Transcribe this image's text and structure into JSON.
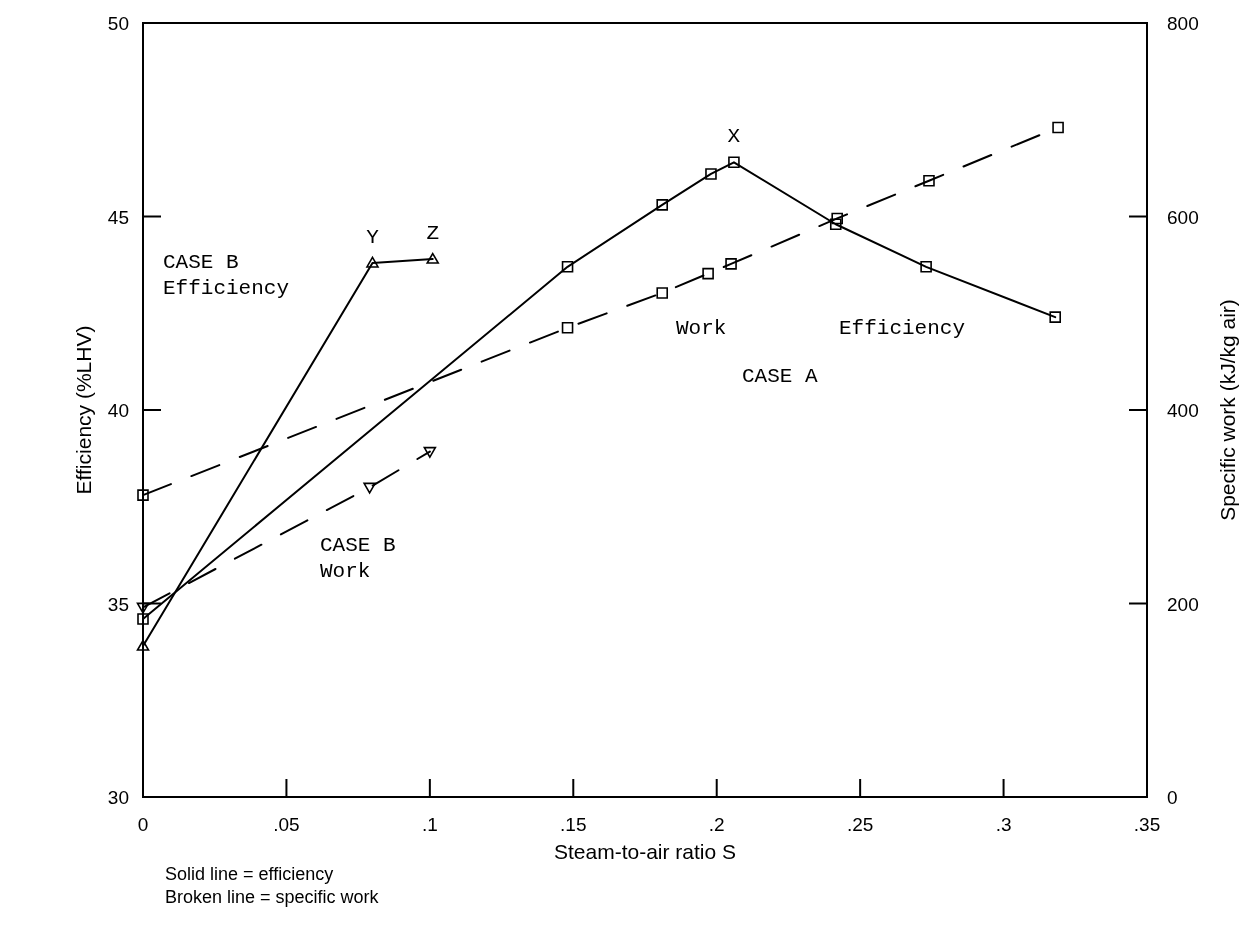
{
  "chart_data": {
    "type": "line",
    "xlabel": "Steam-to-air ratio S",
    "ylabel": "Efficiency (%LHV)",
    "y2label": "Specific work (kJ/kg air)",
    "xlim": [
      0,
      0.35
    ],
    "xticks": [
      0,
      {
        "value": 0.05,
        "label": ".05"
      },
      {
        "value": 0.1,
        "label": ".1"
      },
      {
        "value": 0.15,
        "label": ".15"
      },
      {
        "value": 0.2,
        "label": ".2"
      },
      {
        "value": 0.25,
        "label": ".25"
      },
      {
        "value": 0.3,
        "label": ".3"
      },
      {
        "value": 0.35,
        "label": ".35"
      }
    ],
    "ylim": [
      30,
      50
    ],
    "yticks": [
      30,
      35,
      40,
      45,
      50
    ],
    "y2lim": [
      0,
      800
    ],
    "y2ticks": [
      0,
      200,
      400,
      600,
      800
    ],
    "grid": false,
    "series": [
      {
        "color": "#000000",
        "marker": "square",
        "line_style": "solid",
        "x": [
          0,
          0.148,
          0.181,
          0.198,
          0.206,
          0.2415,
          0.273,
          0.318
        ],
        "values": [
          34.6,
          43.7,
          45.3,
          46.1,
          46.4,
          44.8,
          43.7,
          42.4
        ]
      },
      {
        "color": "#000000",
        "marker": "square",
        "line_style": "dashed",
        "axis": "y2",
        "x": [
          0,
          0.148,
          0.181,
          0.197,
          0.205,
          0.242,
          0.274,
          0.319
        ],
        "values": [
          312,
          485,
          521,
          541,
          551,
          598,
          637,
          692
        ]
      },
      {
        "color": "#000000",
        "marker": "triangle",
        "line_style": "solid",
        "x": [
          0,
          0.08,
          0.101
        ],
        "values": [
          33.9,
          43.8,
          43.9
        ]
      },
      {
        "color": "#000000",
        "marker": "triangle-down",
        "line_style": "dashed",
        "axis": "y2",
        "x": [
          0,
          0.079,
          0.1
        ],
        "values": [
          196,
          320,
          357
        ]
      }
    ],
    "annotations": [
      {
        "text": "X",
        "x": 0.206,
        "y": 46.4
      },
      {
        "text": "Y",
        "x": 0.08,
        "y": 43.8
      },
      {
        "text": "Z",
        "x": 0.101,
        "y": 43.9
      },
      "CASE B\nEfficiency",
      "CASE B\nWork",
      "Work",
      "Efficiency",
      "CASE A",
      "Solid line = efficiency\nBroken line = specific work"
    ]
  }
}
